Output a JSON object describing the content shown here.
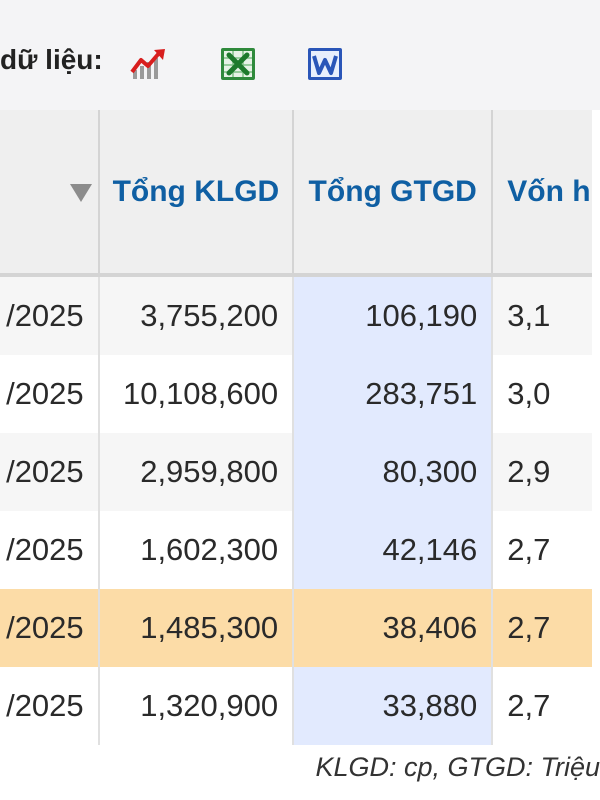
{
  "toolbar": {
    "label": "dữ liệu:",
    "icons": [
      "chart-icon",
      "excel-icon",
      "word-icon"
    ]
  },
  "table": {
    "headers": {
      "date": "",
      "klgd": "Tổng KLGD",
      "gtgd": "Tổng GTGD",
      "von": "Vốn h"
    },
    "rows": [
      {
        "date": "/2025",
        "klgd": "3,755,200",
        "gtgd": "106,190",
        "von": "3,1"
      },
      {
        "date": "/2025",
        "klgd": "10,108,600",
        "gtgd": "283,751",
        "von": "3,0"
      },
      {
        "date": "/2025",
        "klgd": "2,959,800",
        "gtgd": "80,300",
        "von": "2,9"
      },
      {
        "date": "/2025",
        "klgd": "1,602,300",
        "gtgd": "42,146",
        "von": "2,7"
      },
      {
        "date": "/2025",
        "klgd": "1,485,300",
        "gtgd": "38,406",
        "von": "2,7"
      },
      {
        "date": "/2025",
        "klgd": "1,320,900",
        "gtgd": "33,880",
        "von": "2,7"
      }
    ],
    "highlighted_row": 4
  },
  "footnote": "KLGD: cp, GTGD: Triệu",
  "colors": {
    "header_text": "#0f5fa3",
    "highlight_row": "#fcdca7",
    "gtgd_column": "#e2eafe"
  }
}
